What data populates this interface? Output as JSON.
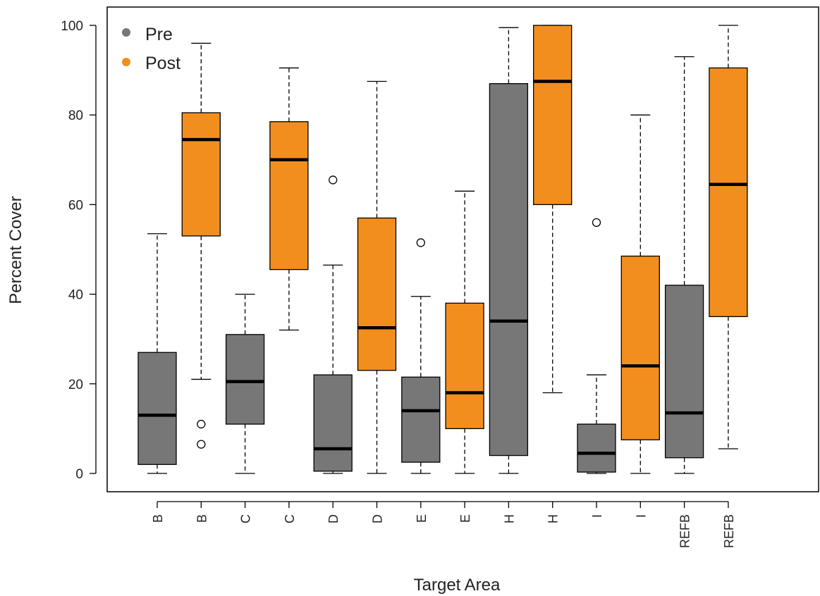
{
  "chart_data": {
    "type": "boxplot",
    "xlabel": "Target Area",
    "ylabel": "Percent Cover",
    "ylim": [
      -4,
      104
    ],
    "yticks": [
      0,
      20,
      40,
      60,
      80,
      100
    ],
    "legend": {
      "placement": "top-left",
      "entries": [
        {
          "label": "Pre",
          "color": "#777777"
        },
        {
          "label": "Post",
          "color": "#f28e1e"
        }
      ]
    },
    "colors": {
      "Pre": "#777777",
      "Post": "#f28e1e"
    },
    "boxes": [
      {
        "label": "B",
        "group": "Pre",
        "min": 0,
        "q1": 2,
        "median": 13,
        "q3": 27,
        "max": 53.5,
        "outliers": []
      },
      {
        "label": "B",
        "group": "Post",
        "min": 21,
        "q1": 53,
        "median": 74.5,
        "q3": 80.5,
        "max": 96,
        "outliers": [
          11,
          6.5
        ]
      },
      {
        "label": "C",
        "group": "Pre",
        "min": 0,
        "q1": 11,
        "median": 20.5,
        "q3": 31,
        "max": 40,
        "outliers": []
      },
      {
        "label": "C",
        "group": "Post",
        "min": 32,
        "q1": 45.5,
        "median": 70,
        "q3": 78.5,
        "max": 90.5,
        "outliers": []
      },
      {
        "label": "D",
        "group": "Pre",
        "min": 0,
        "q1": 0.5,
        "median": 5.5,
        "q3": 22,
        "max": 46.5,
        "outliers": [
          65.5
        ]
      },
      {
        "label": "D",
        "group": "Post",
        "min": 0,
        "q1": 23,
        "median": 32.5,
        "q3": 57,
        "max": 87.5,
        "outliers": []
      },
      {
        "label": "E",
        "group": "Pre",
        "min": 0,
        "q1": 2.5,
        "median": 14,
        "q3": 21.5,
        "max": 39.5,
        "outliers": [
          51.5
        ]
      },
      {
        "label": "E",
        "group": "Post",
        "min": 0,
        "q1": 10,
        "median": 18,
        "q3": 38,
        "max": 63,
        "outliers": []
      },
      {
        "label": "H",
        "group": "Pre",
        "min": 0,
        "q1": 4,
        "median": 34,
        "q3": 87,
        "max": 99.5,
        "outliers": []
      },
      {
        "label": "H",
        "group": "Post",
        "min": 18,
        "q1": 60,
        "median": 87.5,
        "q3": 100,
        "max": 100,
        "outliers": []
      },
      {
        "label": "I",
        "group": "Pre",
        "min": 0,
        "q1": 0.3,
        "median": 4.5,
        "q3": 11,
        "max": 22,
        "outliers": [
          56
        ]
      },
      {
        "label": "I",
        "group": "Post",
        "min": 0,
        "q1": 7.5,
        "median": 24,
        "q3": 48.5,
        "max": 80,
        "outliers": []
      },
      {
        "label": "REFB",
        "group": "Pre",
        "min": 0,
        "q1": 3.5,
        "median": 13.5,
        "q3": 42,
        "max": 93,
        "outliers": []
      },
      {
        "label": "REFB",
        "group": "Post",
        "min": 5.5,
        "q1": 35,
        "median": 64.5,
        "q3": 90.5,
        "max": 100,
        "outliers": []
      }
    ]
  }
}
